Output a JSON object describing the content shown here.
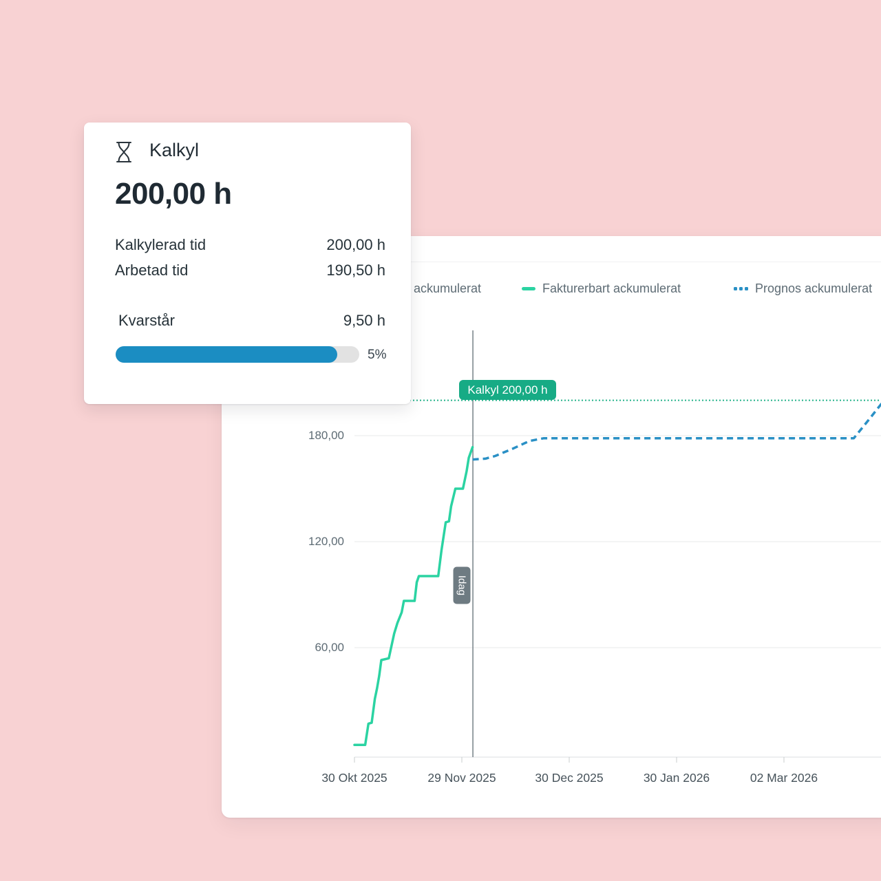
{
  "background_color": "#F8D2D3",
  "kalkyl_card": {
    "icon": "hourglass-icon",
    "title": "Kalkyl",
    "total": "200,00 h",
    "rows": [
      {
        "label": "Kalkylerad tid",
        "value": "200,00 h"
      },
      {
        "label": "Arbetad tid",
        "value": "190,50 h"
      }
    ],
    "remaining_row": {
      "label": "Kvarstår",
      "value": "9,50 h"
    },
    "progress": {
      "percent_label": "5%",
      "fill_ratio": 0.91,
      "fill_color": "#1B8DC2",
      "track_color": "#E2E2E2"
    }
  },
  "chart_card": {
    "legend": [
      {
        "label": "ackumulerat",
        "marker": "none",
        "color": ""
      },
      {
        "label": "Fakturerbart ackumulerat",
        "marker": "dash",
        "color": "#2BD3A2"
      },
      {
        "label": "Prognos ackumulerat",
        "marker": "dots",
        "color": "#2A90C5"
      }
    ],
    "plotband_label": "Kalkyl 200,00 h",
    "plotband_badge_color": "#17AB85",
    "today_label": "Idag",
    "today_badge_color": "#6E7B82"
  },
  "chart_data": {
    "type": "line",
    "title": "",
    "xlabel": "",
    "ylabel": "",
    "x_unit": "months after 30 Okt 2025 (1 unit = one x-tick interval)",
    "x_ticks": [
      "30 Okt 2025",
      "29 Nov 2025",
      "30 Dec 2025",
      "30 Jan 2026",
      "02 Mar 2026"
    ],
    "y_ticks": [
      {
        "value": 60,
        "label": "60,00"
      },
      {
        "value": 120,
        "label": "120,00"
      },
      {
        "value": 180,
        "label": "180,00"
      }
    ],
    "ylim": [
      0,
      240
    ],
    "grid": "horizontal-only",
    "legend_position": "top",
    "kalkyl_line": {
      "value": 200,
      "label": "Kalkyl 200,00 h",
      "style": "dotted",
      "color": "#23B28A"
    },
    "today_line": {
      "x": 1.103,
      "label": "Idag",
      "color": "#7E888E"
    },
    "series": [
      {
        "name": "Fakturerbart ackumulerat",
        "style": "solid",
        "color": "#2BD3A2",
        "points": [
          [
            0,
            5
          ],
          [
            0.1,
            5
          ],
          [
            0.13,
            17
          ],
          [
            0.16,
            17.5
          ],
          [
            0.19,
            31
          ],
          [
            0.21,
            37
          ],
          [
            0.23,
            44
          ],
          [
            0.25,
            53
          ],
          [
            0.32,
            54
          ],
          [
            0.37,
            68
          ],
          [
            0.4,
            74
          ],
          [
            0.44,
            80
          ],
          [
            0.46,
            86.5
          ],
          [
            0.56,
            86.5
          ],
          [
            0.58,
            97
          ],
          [
            0.6,
            100.5
          ],
          [
            0.78,
            100.5
          ],
          [
            0.81,
            115
          ],
          [
            0.85,
            131
          ],
          [
            0.88,
            131.5
          ],
          [
            0.9,
            140
          ],
          [
            0.94,
            150
          ],
          [
            1.01,
            150
          ],
          [
            1.045,
            160
          ],
          [
            1.065,
            167.5
          ],
          [
            1.1,
            173.5
          ]
        ]
      },
      {
        "name": "Prognos ackumulerat",
        "style": "dashed",
        "color": "#2A90C5",
        "points": [
          [
            1.1,
            166.5
          ],
          [
            1.22,
            167
          ],
          [
            1.31,
            168.5
          ],
          [
            1.47,
            172.5
          ],
          [
            1.63,
            177
          ],
          [
            1.76,
            178.5
          ],
          [
            4.65,
            178.5
          ],
          [
            4.79,
            189
          ],
          [
            4.92,
            199
          ]
        ]
      }
    ]
  }
}
